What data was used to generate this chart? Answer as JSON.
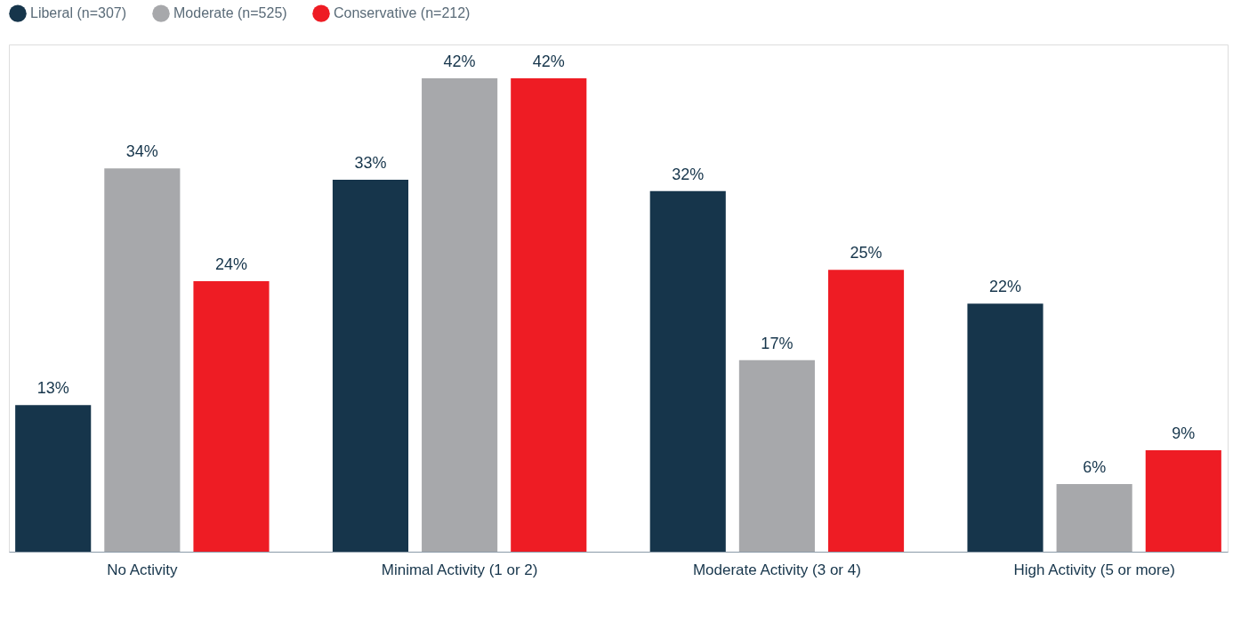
{
  "chart_data": {
    "type": "bar",
    "categories": [
      "No Activity",
      "Minimal Activity (1 or 2)",
      "Moderate Activity (3 or 4)",
      "High Activity (5 or more)"
    ],
    "series": [
      {
        "name": "Liberal (n=307)",
        "color": "#16354b",
        "values": [
          13,
          33,
          32,
          22
        ],
        "value_labels": [
          "13%",
          "33%",
          "32%",
          "22%"
        ]
      },
      {
        "name": "Moderate (n=525)",
        "color": "#a7a8ab",
        "values": [
          34,
          42,
          17,
          6
        ],
        "value_labels": [
          "34%",
          "42%",
          "17%",
          "6%"
        ]
      },
      {
        "name": "Conservative (n=212)",
        "color": "#ee1c24",
        "values": [
          24,
          42,
          25,
          9
        ],
        "value_labels": [
          "24%",
          "42%",
          "25%",
          "9%"
        ]
      }
    ],
    "grid": false,
    "legend": "top left"
  }
}
